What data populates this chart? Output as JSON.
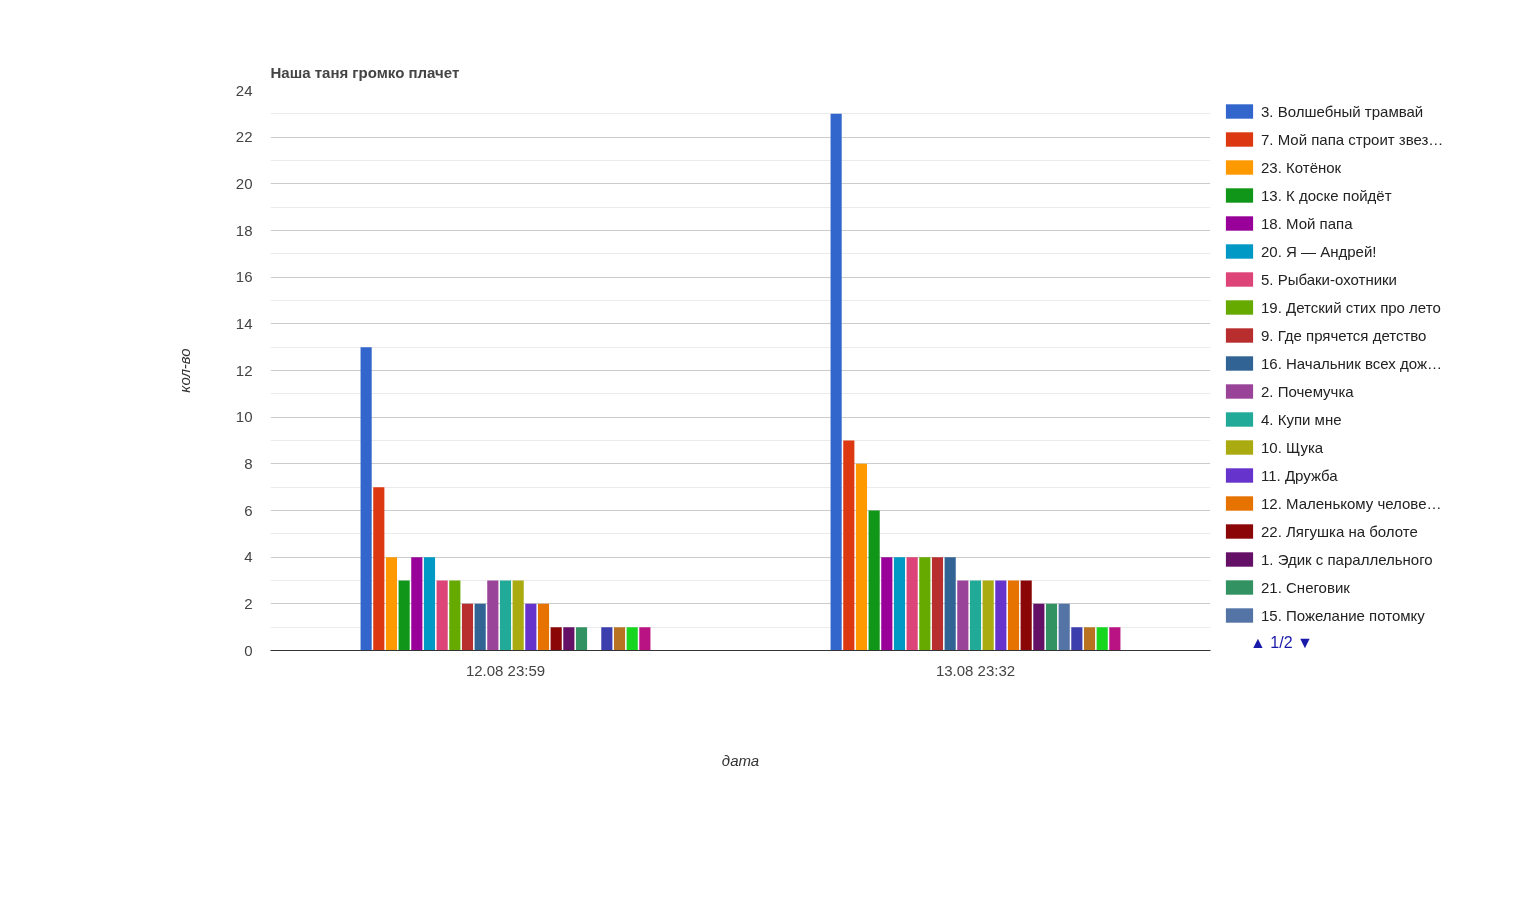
{
  "chart_data": {
    "type": "bar",
    "title": "Наша таня громко плачет",
    "xlabel": "дата",
    "ylabel": "кол-во",
    "categories": [
      "12.08 23:59",
      "13.08 23:32"
    ],
    "ylim": [
      0,
      24
    ],
    "yticks": [
      0,
      2,
      4,
      6,
      8,
      10,
      12,
      14,
      16,
      18,
      20,
      22,
      24
    ],
    "grid": "y",
    "legend": "right",
    "annotations": [
      "▲ 1/2 ▼"
    ],
    "series": [
      {
        "name": "3. Волшебный трамвай",
        "color": "#3366cc",
        "values": [
          13,
          23
        ]
      },
      {
        "name": "7. Мой папа строит звез…",
        "color": "#dc3912",
        "values": [
          7,
          9
        ]
      },
      {
        "name": "23. Котёнок",
        "color": "#ff9900",
        "values": [
          4,
          8
        ]
      },
      {
        "name": "13. К доске пойдёт",
        "color": "#109618",
        "values": [
          3,
          6
        ]
      },
      {
        "name": "18. Мой папа",
        "color": "#990099",
        "values": [
          4,
          4
        ]
      },
      {
        "name": "20. Я — Андрей!",
        "color": "#0099c6",
        "values": [
          4,
          4
        ]
      },
      {
        "name": "5. Рыбаки-охотники",
        "color": "#dd4477",
        "values": [
          3,
          4
        ]
      },
      {
        "name": "19. Детский стих про лето",
        "color": "#66aa00",
        "values": [
          3,
          4
        ]
      },
      {
        "name": "9. Где прячется детство",
        "color": "#b82e2e",
        "values": [
          2,
          4
        ]
      },
      {
        "name": "16. Начальник всех дож…",
        "color": "#316395",
        "values": [
          2,
          4
        ]
      },
      {
        "name": "2. Почемучка",
        "color": "#994499",
        "values": [
          3,
          3
        ]
      },
      {
        "name": "4. Купи мне",
        "color": "#22aa99",
        "values": [
          3,
          3
        ]
      },
      {
        "name": "10. Щука",
        "color": "#aaaa11",
        "values": [
          3,
          3
        ]
      },
      {
        "name": "11. Дружба",
        "color": "#6633cc",
        "values": [
          2,
          3
        ]
      },
      {
        "name": "12. Маленькому челове…",
        "color": "#e67300",
        "values": [
          2,
          3
        ]
      },
      {
        "name": "22. Лягушка на болоте",
        "color": "#8b0707",
        "values": [
          1,
          3
        ]
      },
      {
        "name": "1. Эдик с параллельного",
        "color": "#651067",
        "values": [
          1,
          2
        ]
      },
      {
        "name": "21. Снеговик",
        "color": "#329262",
        "values": [
          1,
          2
        ]
      },
      {
        "name": "15. Пожелание потомку",
        "color": "#5574a6",
        "values": [
          0,
          2
        ]
      },
      {
        "color": "#3b3eac",
        "values": [
          1,
          1
        ]
      },
      {
        "color": "#b77322",
        "values": [
          1,
          1
        ]
      },
      {
        "color": "#16d620",
        "values": [
          1,
          1
        ]
      },
      {
        "color": "#b91383",
        "values": [
          1,
          1
        ]
      }
    ]
  }
}
